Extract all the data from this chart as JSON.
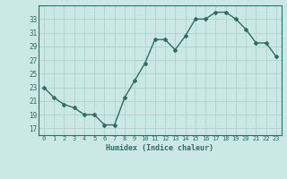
{
  "x": [
    0,
    1,
    2,
    3,
    4,
    5,
    6,
    7,
    8,
    9,
    10,
    11,
    12,
    13,
    14,
    15,
    16,
    17,
    18,
    19,
    20,
    21,
    22,
    23
  ],
  "y": [
    23,
    21.5,
    20.5,
    20,
    19,
    19,
    17.5,
    17.5,
    21.5,
    24,
    26.5,
    30,
    30,
    28.5,
    30.5,
    33,
    33,
    34,
    34,
    33,
    31.5,
    29.5,
    29.5,
    27.5
  ],
  "xlabel": "Humidex (Indice chaleur)",
  "bg_color": "#cce8e6",
  "line_color": "#2e6e65",
  "grid_color": "#aacfcc",
  "ylim": [
    16,
    35
  ],
  "yticks": [
    17,
    19,
    21,
    23,
    25,
    27,
    29,
    31,
    33
  ],
  "xticks": [
    0,
    1,
    2,
    3,
    4,
    5,
    6,
    7,
    8,
    9,
    10,
    11,
    12,
    13,
    14,
    15,
    16,
    17,
    18,
    19,
    20,
    21,
    22,
    23
  ],
  "xlim": [
    -0.5,
    23.5
  ]
}
